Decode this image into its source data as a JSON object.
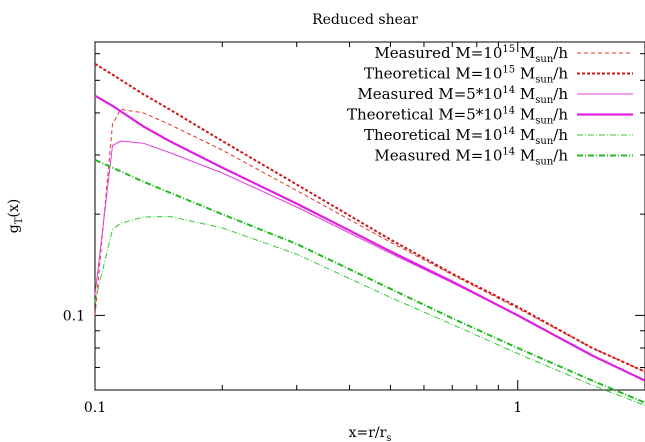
{
  "chart_data": {
    "type": "line",
    "title": "Reduced shear",
    "xlabel": {
      "base": "x=r/r",
      "sub": "s"
    },
    "ylabel": {
      "base": "g",
      "sub": "T",
      "tail": "(x)"
    },
    "xscale": "log",
    "yscale": "log",
    "xlim": [
      0.1,
      2.0
    ],
    "ylim": [
      0.06,
      0.65
    ],
    "x_ticks": [
      {
        "value": 0.1,
        "label": "0.1"
      },
      {
        "value": 1,
        "label": "1"
      }
    ],
    "y_ticks": [
      {
        "value": 0.1,
        "label": "0.1"
      }
    ],
    "grid": false,
    "legend_position": "top-right",
    "series": [
      {
        "name": "Measured M=10^15 M_sun/h",
        "legend": {
          "pre": "Measured M=10",
          "sup": "15",
          "mid": " M",
          "sub": "sun",
          "post": "/h"
        },
        "color": "#e8301e",
        "width": 1,
        "dash": "4,3",
        "x": [
          0.1,
          0.11,
          0.115,
          0.13,
          0.15,
          0.2,
          0.3,
          0.5,
          0.7,
          1.0,
          1.5,
          2.0
        ],
        "y": [
          0.1,
          0.37,
          0.41,
          0.4,
          0.37,
          0.31,
          0.235,
          0.165,
          0.132,
          0.105,
          0.08,
          0.068
        ]
      },
      {
        "name": "Theoretical M=10^15 M_sun/h",
        "legend": {
          "pre": "Theoretical M=10",
          "sup": "15",
          "mid": " M",
          "sub": "sun",
          "post": "/h"
        },
        "color": "#cc1a1a",
        "width": 2,
        "dash": "3,2",
        "x": [
          0.1,
          0.11,
          0.13,
          0.15,
          0.2,
          0.3,
          0.5,
          0.7,
          1.0,
          1.5,
          2.0
        ],
        "y": [
          0.56,
          0.52,
          0.455,
          0.41,
          0.33,
          0.245,
          0.168,
          0.133,
          0.106,
          0.08,
          0.068
        ]
      },
      {
        "name": "Measured M=5*10^14 M_sun/h",
        "legend": {
          "pre": "Measured M=5*10",
          "sup": "14",
          "mid": " M",
          "sub": "sun",
          "post": "/h"
        },
        "color": "#e040e0",
        "width": 1,
        "dash": "",
        "x": [
          0.1,
          0.11,
          0.115,
          0.13,
          0.15,
          0.2,
          0.3,
          0.5,
          0.7,
          1.0,
          1.5,
          2.0
        ],
        "y": [
          0.115,
          0.32,
          0.33,
          0.325,
          0.305,
          0.265,
          0.21,
          0.153,
          0.125,
          0.1,
          0.076,
          0.064
        ]
      },
      {
        "name": "Theoretical M=5*10^14 M_sun/h",
        "legend": {
          "pre": "Theoretical M=5*10",
          "sup": "14",
          "mid": " M",
          "sub": "sun",
          "post": "/h"
        },
        "color": "#e020e0",
        "width": 2.2,
        "dash": "",
        "x": [
          0.1,
          0.11,
          0.13,
          0.15,
          0.2,
          0.3,
          0.5,
          0.7,
          1.0,
          1.5,
          2.0
        ],
        "y": [
          0.45,
          0.42,
          0.365,
          0.33,
          0.275,
          0.215,
          0.155,
          0.126,
          0.1,
          0.076,
          0.064
        ]
      },
      {
        "name": "Theoretical M=10^14 M_sun/h",
        "legend": {
          "pre": "Theoretical M=10",
          "sup": "14",
          "mid": " M",
          "sub": "sun",
          "post": "/h"
        },
        "color": "#33cc33",
        "width": 1,
        "dash": "6,2,1,2",
        "x": [
          0.1,
          0.11,
          0.115,
          0.13,
          0.15,
          0.2,
          0.3,
          0.5,
          0.7,
          1.0,
          1.5,
          2.0
        ],
        "y": [
          0.11,
          0.18,
          0.188,
          0.196,
          0.197,
          0.182,
          0.152,
          0.113,
          0.094,
          0.077,
          0.062,
          0.054
        ]
      },
      {
        "name": "Measured M=10^14 M_sun/h",
        "legend": {
          "pre": "Measured M=10",
          "sup": "14",
          "mid": " M",
          "sub": "sun",
          "post": "/h"
        },
        "color": "#22bb22",
        "width": 2,
        "dash": "6,2,1,2",
        "x": [
          0.1,
          0.11,
          0.13,
          0.15,
          0.2,
          0.3,
          0.5,
          0.7,
          1.0,
          1.5,
          2.0
        ],
        "y": [
          0.29,
          0.275,
          0.25,
          0.232,
          0.2,
          0.163,
          0.12,
          0.098,
          0.08,
          0.064,
          0.055
        ]
      }
    ]
  }
}
